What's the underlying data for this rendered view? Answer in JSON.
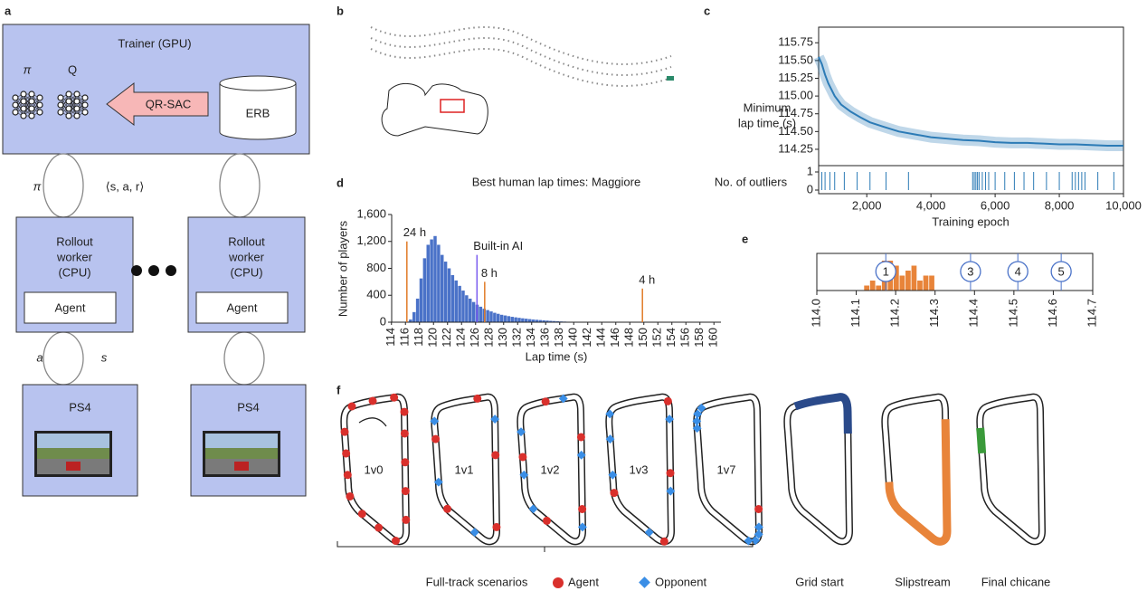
{
  "panel_labels": [
    "a",
    "b",
    "c",
    "d",
    "e",
    "f"
  ],
  "diagram": {
    "trainer": "Trainer (GPU)",
    "policy": "π",
    "q": "Q",
    "algorithm": "QR-SAC",
    "buffer": "ERB",
    "edge_policy": "π",
    "edge_experience": "⟨s, a, r⟩",
    "worker": [
      "Rollout",
      "worker",
      "(CPU)"
    ],
    "agent": "Agent",
    "edge_action": "a",
    "edge_state": "s",
    "console": "PS4"
  },
  "chart_data": [
    {
      "type": "line",
      "ylabel": [
        "Minimum",
        "lap time (s)"
      ],
      "xlabel": "Training epoch",
      "x": [
        500,
        600,
        700,
        800,
        1000,
        1200,
        1500,
        1800,
        2100,
        2500,
        3000,
        3500,
        4000,
        4500,
        5000,
        5500,
        6000,
        6500,
        7000,
        7500,
        8000,
        8500,
        9000,
        9500,
        10000
      ],
      "series": [
        {
          "color": "#2c7bb6",
          "values": [
            115.55,
            115.45,
            115.3,
            115.18,
            115.0,
            114.88,
            114.78,
            114.7,
            114.63,
            114.57,
            114.5,
            114.46,
            114.42,
            114.4,
            114.38,
            114.37,
            114.35,
            114.34,
            114.34,
            114.33,
            114.32,
            114.32,
            114.31,
            114.3,
            114.3
          ]
        }
      ],
      "xlim": [
        500,
        10000
      ],
      "ylim": [
        114.02,
        115.97
      ],
      "xticks": [
        {
          "value": 2000,
          "label": "2,000"
        },
        {
          "value": 4000,
          "label": "4,000"
        },
        {
          "value": 6000,
          "label": "6,000"
        },
        {
          "value": 8000,
          "label": "8,000"
        },
        {
          "value": 10000,
          "label": "10,000"
        }
      ],
      "yticks": [
        114.25,
        {
          "value": 114.5,
          "label": "114.50"
        },
        114.75,
        {
          "value": 115,
          "label": "115.00"
        },
        115.25,
        {
          "value": 115.5,
          "label": "115.50"
        },
        115.75
      ],
      "outliers": {
        "label": "No. of outliers",
        "ylim": [
          0,
          1
        ],
        "yticks": [
          0,
          1
        ],
        "x": [
          600,
          700,
          850,
          1000,
          1300,
          1700,
          2100,
          2600,
          3300,
          5300,
          5350,
          5400,
          5450,
          5500,
          5600,
          5700,
          5800,
          6000,
          6300,
          6600,
          6900,
          7200,
          7600,
          8000,
          8400,
          8500,
          8600,
          8700,
          8800,
          9200,
          9700
        ]
      }
    },
    {
      "type": "histogram",
      "title": "Best human lap times: Maggiore",
      "xlabel": "Lap time (s)",
      "ylabel": "Number of players",
      "bins": [
        116,
        116.5,
        117,
        117.5,
        118,
        118.5,
        119,
        119.5,
        120,
        120.5,
        121,
        121.5,
        122,
        122.5,
        123,
        123.5,
        124,
        124.5,
        125,
        125.5,
        126,
        126.5,
        127,
        127.5,
        128,
        128.5,
        129,
        129.5,
        130,
        130.5,
        131,
        131.5,
        132,
        132.5,
        133,
        133.5,
        134,
        134.5,
        135,
        135.5,
        136,
        136.5,
        137,
        137.5,
        138,
        138.5,
        139,
        139.5,
        140
      ],
      "values": [
        10,
        40,
        150,
        350,
        650,
        950,
        1150,
        1230,
        1280,
        1150,
        1000,
        900,
        800,
        700,
        620,
        540,
        470,
        400,
        350,
        300,
        260,
        230,
        200,
        180,
        160,
        140,
        125,
        110,
        100,
        90,
        80,
        72,
        65,
        58,
        52,
        46,
        40,
        36,
        32,
        28,
        24,
        20,
        17,
        14,
        11,
        9,
        7,
        5
      ],
      "color": "#4a72c8",
      "xlim": [
        113,
        161
      ],
      "ylim": [
        0,
        1600
      ],
      "xticks": [
        114,
        116,
        118,
        120,
        122,
        124,
        126,
        128,
        130,
        132,
        134,
        136,
        138,
        140,
        142,
        144,
        146,
        148,
        150,
        152,
        154,
        156,
        158,
        160
      ],
      "yticks": [
        0,
        400,
        800,
        {
          "value": 1200,
          "label": "1,200"
        },
        {
          "value": 1600,
          "label": "1,600"
        }
      ],
      "markers": [
        {
          "label": "24 h",
          "x": 116.2,
          "y": 1200,
          "color": "#e07b28"
        },
        {
          "label": "Built-in AI",
          "x": 126.2,
          "y": 1000,
          "color": "#7b5cf0"
        },
        {
          "label": "8 h",
          "x": 127.3,
          "y": 600,
          "color": "#e07b28"
        },
        {
          "label": "4 h",
          "x": 149.8,
          "y": 500,
          "color": "#e07b28"
        }
      ]
    },
    {
      "type": "histogram",
      "bins": [
        114.12,
        114.135,
        114.15,
        114.165,
        114.18,
        114.195,
        114.21,
        114.225,
        114.24,
        114.255,
        114.27,
        114.285,
        114.3
      ],
      "values": [
        1,
        2,
        1,
        6,
        6,
        5,
        3,
        4,
        5,
        2,
        3,
        3
      ],
      "color": "#e8843a",
      "xlim": [
        114,
        114.7
      ],
      "xticks": [
        {
          "value": 114,
          "label": "114.0"
        },
        114.1,
        114.2,
        114.3,
        114.4,
        114.5,
        114.6,
        114.7
      ],
      "markers": [
        {
          "label": "1",
          "x": 114.175
        },
        {
          "label": "3",
          "x": 114.39
        },
        {
          "label": "4",
          "x": 114.51
        },
        {
          "label": "5",
          "x": 114.62
        }
      ]
    }
  ],
  "scenarios": {
    "labels": [
      "1v0",
      "1v1",
      "1v2",
      "1v3",
      "1v7"
    ],
    "caption": "Full-track scenarios",
    "agent": "Agent",
    "opponent": "Opponent",
    "special": [
      "Grid start",
      "Slipstream",
      "Final chicane"
    ]
  }
}
